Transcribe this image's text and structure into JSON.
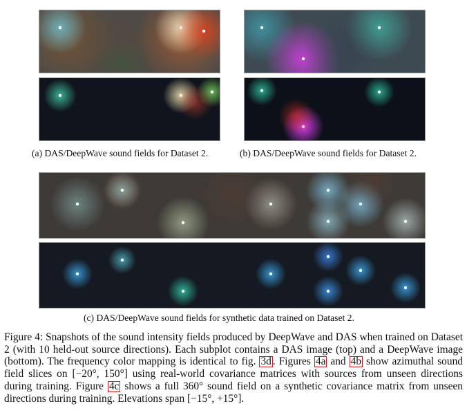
{
  "subfigures": {
    "a": {
      "caption": "(a) DAS/DeepWave sound fields for Dataset 2."
    },
    "b": {
      "caption": "(b) DAS/DeepWave sound fields for Dataset 2."
    },
    "c": {
      "caption": "(c) DAS/DeepWave sound fields for synthetic data trained on Dataset 2."
    }
  },
  "figure": {
    "label": "Figure 4:",
    "caption_part1": "Snapshots of the sound intensity fields produced by DeepWave and DAS when trained on Dataset 2 (with 10 held-out source directions). Each subplot contains a DAS image (top) and a DeepWave image (bottom). The frequency color mapping is identical to fig.",
    "ref_3d": "3d",
    "caption_part2": ". Figures",
    "ref_4a": "4a",
    "caption_and": "and",
    "ref_4b": "4b",
    "caption_part3": "show azimuthal sound field slices on [−20°, 150°] using real-world covariance matrices with sources from unseen directions during training. Figure",
    "ref_4c": "4c",
    "caption_part4": "shows a full 360° sound field on a synthetic covariance matrix from unseen directions during training. Elevations span [−15°, +15°]."
  }
}
